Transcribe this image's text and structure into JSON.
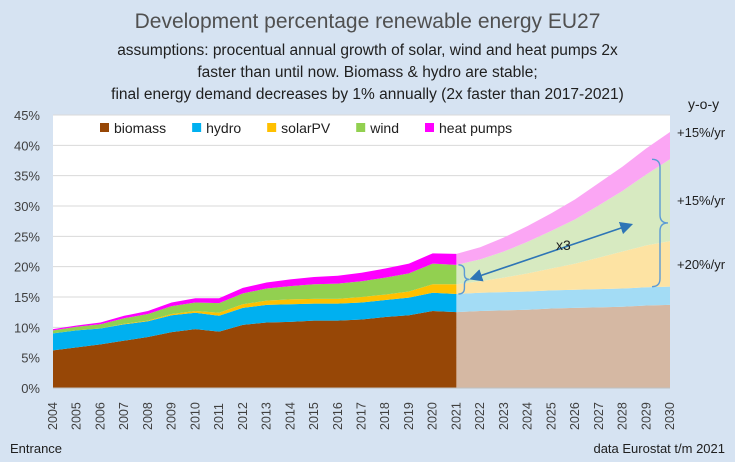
{
  "chart_data": {
    "type": "area",
    "title": "Development percentage renewable energy EU27",
    "subtitle_lines": [
      "assumptions: procentual annual growth of solar, wind and heat pumps 2x",
      "faster than until now. Biomass & hydro are stable;",
      "final energy demand decreases by 1% annually (2x faster than 2017-2021)"
    ],
    "x": [
      2004,
      2005,
      2006,
      2007,
      2008,
      2009,
      2010,
      2011,
      2012,
      2013,
      2014,
      2015,
      2016,
      2017,
      2018,
      2019,
      2020,
      2021,
      2022,
      2023,
      2024,
      2025,
      2026,
      2027,
      2028,
      2029,
      2030
    ],
    "projection_start": 2021,
    "ylim": [
      0,
      45
    ],
    "yticks": [
      "0%",
      "5%",
      "10%",
      "15%",
      "20%",
      "25%",
      "30%",
      "35%",
      "40%",
      "45%"
    ],
    "series": [
      {
        "name": "biomass",
        "color": "#974706",
        "projection_color": "#d5b8a3",
        "values": [
          6.2,
          6.7,
          7.2,
          7.8,
          8.4,
          9.2,
          9.7,
          9.3,
          10.4,
          10.8,
          10.9,
          11.1,
          11.1,
          11.3,
          11.7,
          12.0,
          12.7,
          12.5,
          12.7,
          12.8,
          12.9,
          13.1,
          13.2,
          13.3,
          13.4,
          13.6,
          13.7
        ]
      },
      {
        "name": "hydro",
        "color": "#00b0f0",
        "projection_color": "#a3dcf5",
        "values": [
          2.8,
          2.8,
          2.6,
          2.7,
          2.6,
          2.8,
          2.7,
          2.6,
          2.8,
          2.9,
          2.9,
          2.8,
          2.8,
          2.8,
          2.8,
          2.9,
          3.0,
          3.0,
          3.0,
          3.0,
          3.0,
          3.0,
          3.0,
          3.0,
          3.0,
          3.0,
          3.0
        ]
      },
      {
        "name": "solarPV",
        "color": "#ffc000",
        "projection_color": "#fde3a3",
        "values": [
          0.0,
          0.0,
          0.0,
          0.1,
          0.1,
          0.2,
          0.3,
          0.5,
          0.6,
          0.7,
          0.8,
          0.8,
          0.8,
          0.9,
          0.9,
          1.0,
          1.4,
          1.6,
          1.9,
          2.4,
          3.0,
          3.6,
          4.3,
          5.2,
          6.1,
          6.9,
          7.5
        ]
      },
      {
        "name": "wind",
        "color": "#92d050",
        "projection_color": "#d7eac1",
        "values": [
          0.5,
          0.6,
          0.7,
          0.9,
          1.1,
          1.3,
          1.4,
          1.6,
          1.8,
          2.0,
          2.2,
          2.4,
          2.5,
          2.6,
          2.8,
          3.0,
          3.4,
          3.2,
          3.6,
          4.3,
          5.2,
          6.2,
          7.3,
          8.6,
          10.0,
          11.7,
          13.5
        ]
      },
      {
        "name": "heat pumps",
        "color": "#ff00ff",
        "projection_color": "#fba6f4",
        "values": [
          0.2,
          0.2,
          0.3,
          0.4,
          0.5,
          0.6,
          0.7,
          0.8,
          0.9,
          1.0,
          1.1,
          1.2,
          1.3,
          1.4,
          1.5,
          1.6,
          1.7,
          1.8,
          2.0,
          2.3,
          2.6,
          2.9,
          3.3,
          3.7,
          4.0,
          4.3,
          4.5
        ]
      }
    ],
    "growth_labels": [
      {
        "text": "+15%/yr",
        "series": "heat pumps"
      },
      {
        "text": "+15%/yr",
        "series": "wind"
      },
      {
        "text": "+20%/yr",
        "series": "solarPV"
      }
    ],
    "yoy_label": "y-o-y",
    "multiplier_label": "x3",
    "legend_position": "top"
  },
  "footer": {
    "left": "Entrance",
    "right": "data Eurostat t/m 2021"
  }
}
